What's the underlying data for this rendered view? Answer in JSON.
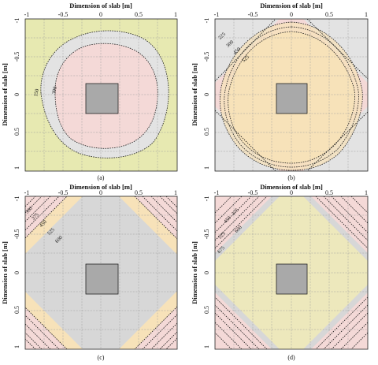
{
  "axis_titles": {
    "x": "Dimension of slab [m]",
    "y": "Dimension of slab [m]"
  },
  "x_ticks": [
    "-1",
    "-0.5",
    "0",
    "0.5",
    "1"
  ],
  "y_ticks": [
    "-1",
    "-0.5",
    "0",
    "0.5",
    "1"
  ],
  "colors": {
    "olive": "#e7e9b1",
    "light_gray": "#e3e3e3",
    "pink": "#f4d9d7",
    "peach": "#f7e2b9",
    "gray": "#d7d7d7",
    "yellow": "#ede8bc",
    "column": "#a9a9a9"
  },
  "panels": [
    {
      "id": "a",
      "label": "(a)",
      "zones": [
        "olive",
        "light_gray",
        "pink"
      ],
      "contour_labels": [
        "150",
        "300"
      ]
    },
    {
      "id": "b",
      "label": "(b)",
      "zones": [
        "light_gray",
        "pink",
        "peach"
      ],
      "contour_labels": [
        "225",
        "300",
        "450",
        "525"
      ]
    },
    {
      "id": "c",
      "label": "(c)",
      "zones": [
        "pink",
        "peach",
        "gray"
      ],
      "contour_labels": [
        "300",
        "375",
        "450",
        "525",
        "600"
      ]
    },
    {
      "id": "d",
      "label": "(d)",
      "zones": [
        "pink",
        "gray",
        "yellow"
      ],
      "contour_labels": [
        "375",
        "450",
        "525",
        "600",
        "675"
      ]
    }
  ]
}
